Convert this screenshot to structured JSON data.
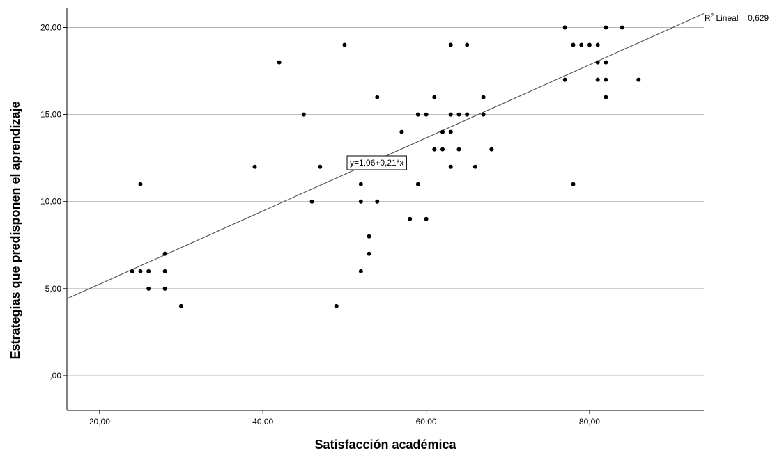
{
  "chart_data": {
    "type": "scatter",
    "xlabel": "Satisfacción académica",
    "ylabel": "Estrategias que predisponen el aprendizaje",
    "xlim": [
      16,
      94
    ],
    "ylim": [
      -2,
      21.1
    ],
    "x_ticks": [
      20,
      40,
      60,
      80
    ],
    "x_tick_labels": [
      "20,00",
      "40,00",
      "60,00",
      "80,00"
    ],
    "y_ticks": [
      0,
      5,
      10,
      15,
      20
    ],
    "y_tick_labels": [
      ",00",
      "5,00",
      "10,00",
      "15,00",
      "20,00"
    ],
    "grid": "horizontal",
    "fit_line": {
      "intercept": 1.06,
      "slope": 0.21,
      "equation_label": "y=1,06+0,21*x",
      "r2_prefix": "R",
      "r2_sup": "2",
      "r2_rest": " Lineal = 0,629"
    },
    "points": [
      {
        "x": 24,
        "y": 6
      },
      {
        "x": 25,
        "y": 6
      },
      {
        "x": 25,
        "y": 11
      },
      {
        "x": 26,
        "y": 6
      },
      {
        "x": 26,
        "y": 5
      },
      {
        "x": 28,
        "y": 7
      },
      {
        "x": 28,
        "y": 6
      },
      {
        "x": 28,
        "y": 5
      },
      {
        "x": 30,
        "y": 4
      },
      {
        "x": 39,
        "y": 12
      },
      {
        "x": 42,
        "y": 18
      },
      {
        "x": 45,
        "y": 15
      },
      {
        "x": 46,
        "y": 10
      },
      {
        "x": 47,
        "y": 12
      },
      {
        "x": 49,
        "y": 4
      },
      {
        "x": 50,
        "y": 19
      },
      {
        "x": 52,
        "y": 11
      },
      {
        "x": 52,
        "y": 10
      },
      {
        "x": 52,
        "y": 6
      },
      {
        "x": 53,
        "y": 8
      },
      {
        "x": 53,
        "y": 7
      },
      {
        "x": 54,
        "y": 16
      },
      {
        "x": 54,
        "y": 12
      },
      {
        "x": 54,
        "y": 10
      },
      {
        "x": 56,
        "y": 12
      },
      {
        "x": 57,
        "y": 14
      },
      {
        "x": 57,
        "y": 12
      },
      {
        "x": 58,
        "y": 9
      },
      {
        "x": 59,
        "y": 15
      },
      {
        "x": 59,
        "y": 11
      },
      {
        "x": 60,
        "y": 15
      },
      {
        "x": 60,
        "y": 9
      },
      {
        "x": 61,
        "y": 16
      },
      {
        "x": 61,
        "y": 13
      },
      {
        "x": 62,
        "y": 14
      },
      {
        "x": 62,
        "y": 13
      },
      {
        "x": 63,
        "y": 19
      },
      {
        "x": 63,
        "y": 15
      },
      {
        "x": 63,
        "y": 14
      },
      {
        "x": 63,
        "y": 12
      },
      {
        "x": 64,
        "y": 15
      },
      {
        "x": 64,
        "y": 13
      },
      {
        "x": 65,
        "y": 19
      },
      {
        "x": 65,
        "y": 15
      },
      {
        "x": 66,
        "y": 12
      },
      {
        "x": 67,
        "y": 16
      },
      {
        "x": 67,
        "y": 15
      },
      {
        "x": 68,
        "y": 13
      },
      {
        "x": 77,
        "y": 20
      },
      {
        "x": 77,
        "y": 17
      },
      {
        "x": 78,
        "y": 19
      },
      {
        "x": 78,
        "y": 11
      },
      {
        "x": 79,
        "y": 19
      },
      {
        "x": 80,
        "y": 19
      },
      {
        "x": 81,
        "y": 19
      },
      {
        "x": 81,
        "y": 18
      },
      {
        "x": 81,
        "y": 17
      },
      {
        "x": 82,
        "y": 20
      },
      {
        "x": 82,
        "y": 18
      },
      {
        "x": 82,
        "y": 17
      },
      {
        "x": 82,
        "y": 16
      },
      {
        "x": 84,
        "y": 20
      },
      {
        "x": 86,
        "y": 17
      }
    ]
  },
  "colors": {
    "point": "#000000",
    "line": "#4d4d4d",
    "grid": "#b4b4b4",
    "axis": "#000000"
  }
}
